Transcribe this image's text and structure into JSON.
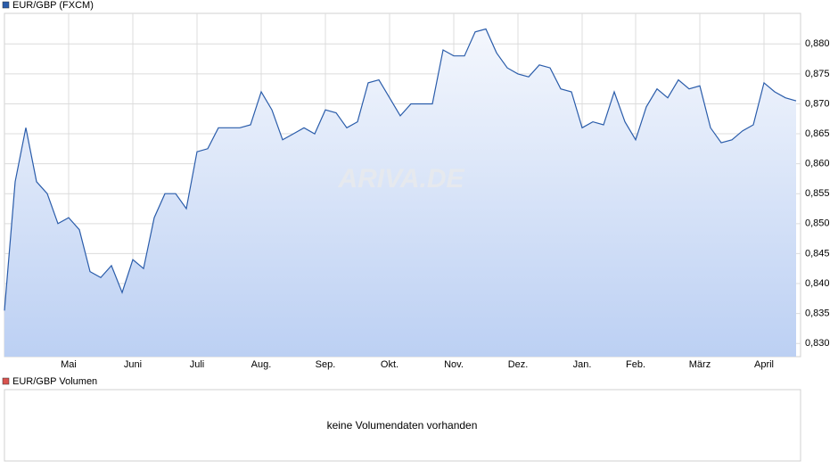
{
  "chart_data": {
    "type": "line",
    "categories": [
      null,
      null,
      null,
      null,
      null,
      null,
      "Mai",
      null,
      null,
      null,
      null,
      null,
      "Juni",
      null,
      null,
      null,
      null,
      null,
      "Juli",
      null,
      null,
      null,
      null,
      null,
      "Aug.",
      null,
      null,
      null,
      null,
      null,
      "Sep.",
      null,
      null,
      null,
      null,
      null,
      "Okt.",
      null,
      null,
      null,
      null,
      null,
      "Nov.",
      null,
      null,
      null,
      null,
      null,
      "Dez.",
      null,
      null,
      null,
      null,
      null,
      "Jan.",
      null,
      null,
      null,
      null,
      "Feb.",
      null,
      null,
      null,
      null,
      null,
      "März",
      null,
      null,
      null,
      null,
      null,
      "April",
      null,
      null,
      null
    ],
    "series": [
      {
        "name": "EUR/GBP (FXCM)",
        "color": "#2a5caa",
        "values": [
          0.8355,
          0.857,
          0.866,
          0.857,
          0.855,
          0.85,
          0.851,
          0.849,
          0.842,
          0.841,
          0.843,
          0.8385,
          0.844,
          0.8425,
          0.851,
          0.855,
          0.855,
          0.8525,
          0.862,
          0.8625,
          0.866,
          0.866,
          0.866,
          0.8665,
          0.872,
          0.869,
          0.864,
          0.865,
          0.866,
          0.865,
          0.869,
          0.8685,
          0.866,
          0.867,
          0.8735,
          0.874,
          0.871,
          0.868,
          0.87,
          0.87,
          0.87,
          0.879,
          0.878,
          0.878,
          0.882,
          0.8825,
          0.8785,
          0.876,
          0.875,
          0.8745,
          0.8765,
          0.876,
          0.8725,
          0.872,
          0.866,
          0.867,
          0.8665,
          0.872,
          0.867,
          0.864,
          0.8695,
          0.8725,
          0.871,
          0.874,
          0.8725,
          0.873,
          0.866,
          0.8635,
          0.864,
          0.8655,
          0.8665,
          0.8735,
          0.872,
          0.871,
          0.8705
        ]
      }
    ],
    "ylim": [
      0.8278,
      0.8851
    ],
    "yticks": [
      {
        "value": 0.83,
        "label": "0,830"
      },
      {
        "value": 0.835,
        "label": "0,835"
      },
      {
        "value": 0.84,
        "label": "0,840"
      },
      {
        "value": 0.845,
        "label": "0,845"
      },
      {
        "value": 0.85,
        "label": "0,850"
      },
      {
        "value": 0.855,
        "label": "0,855"
      },
      {
        "value": 0.86,
        "label": "0,860"
      },
      {
        "value": 0.865,
        "label": "0,865"
      },
      {
        "value": 0.87,
        "label": "0,870"
      },
      {
        "value": 0.875,
        "label": "0,875"
      },
      {
        "value": 0.88,
        "label": "0,880"
      }
    ],
    "grid": true
  },
  "watermark": "ARIVA.DE",
  "volume_panel": {
    "legend": "EUR/GBP Volumen",
    "color": "#d9534f",
    "message": "keine Volumendaten vorhanden"
  }
}
